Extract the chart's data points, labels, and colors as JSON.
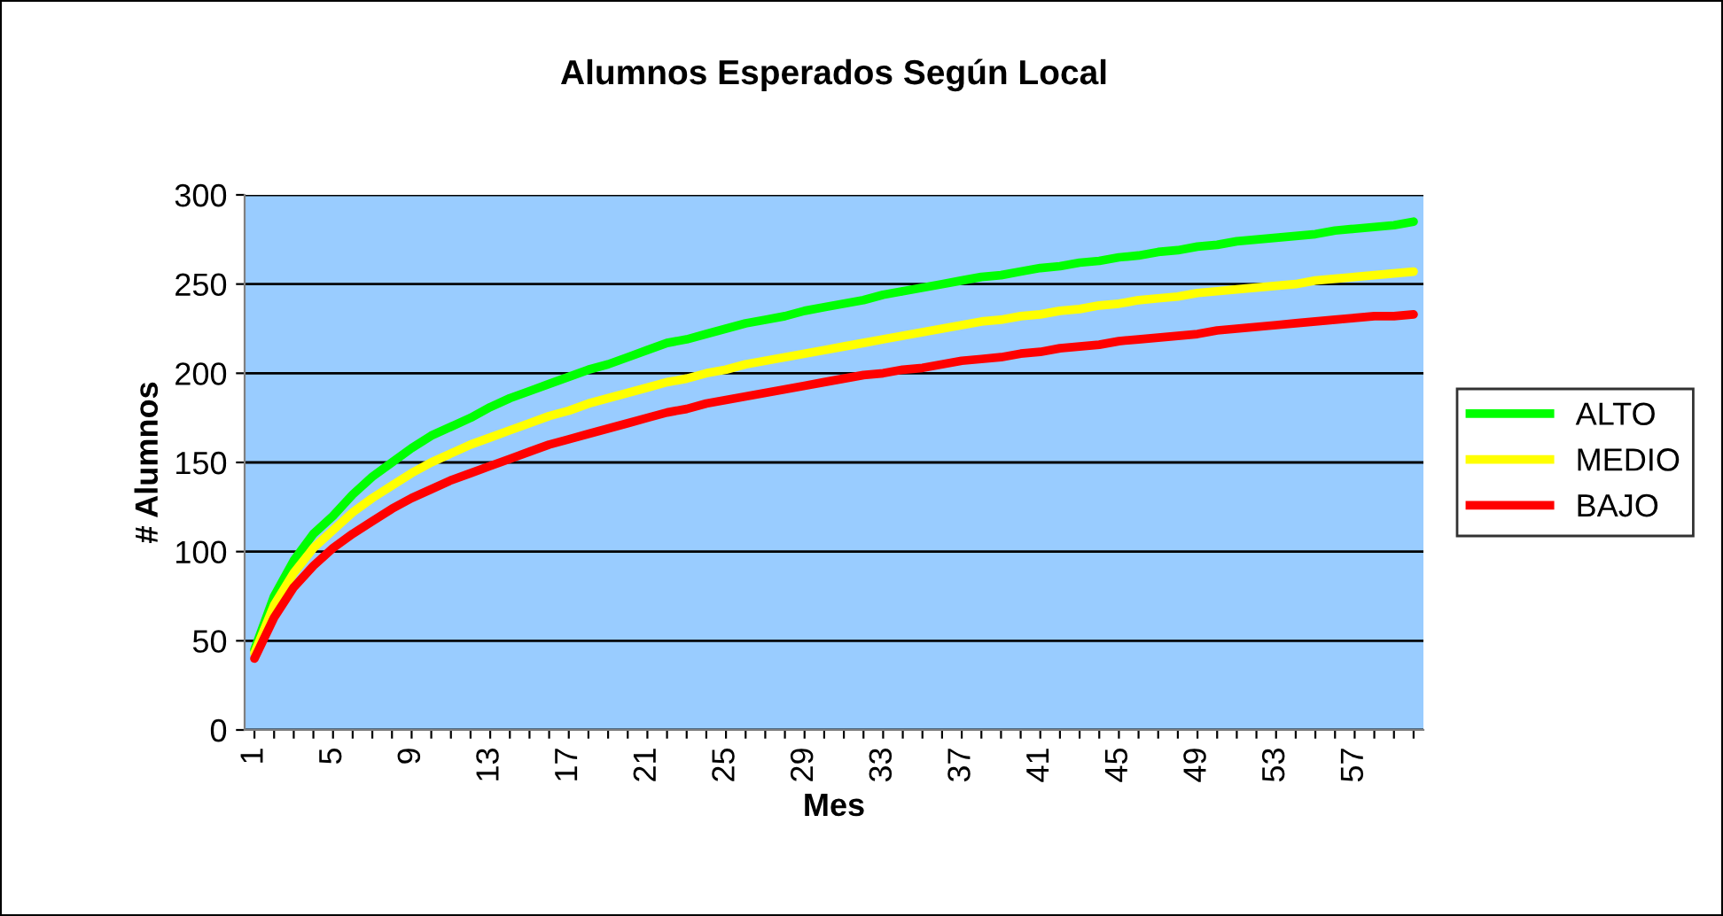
{
  "chart_data": {
    "type": "line",
    "title": "Alumnos Esperados Según Local",
    "xlabel": "Mes",
    "ylabel": "# Alumnos",
    "categories": [
      "1",
      null,
      null,
      null,
      "5",
      null,
      null,
      null,
      "9",
      null,
      null,
      null,
      "13",
      null,
      null,
      null,
      "17",
      null,
      null,
      null,
      "21",
      null,
      null,
      null,
      "25",
      null,
      null,
      null,
      "29",
      null,
      null,
      null,
      "33",
      null,
      null,
      null,
      "37",
      null,
      null,
      null,
      "41",
      null,
      null,
      null,
      "45",
      null,
      null,
      null,
      "49",
      null,
      null,
      null,
      "53",
      null,
      null,
      null,
      "57",
      null,
      null,
      null
    ],
    "series": [
      {
        "name": "ALTO",
        "color": "#00ff00",
        "values": [
          45,
          75,
          95,
          110,
          120,
          132,
          142,
          150,
          158,
          165,
          170,
          175,
          181,
          186,
          190,
          194,
          198,
          202,
          205,
          209,
          213,
          217,
          219,
          222,
          225,
          228,
          230,
          232,
          235,
          237,
          239,
          241,
          244,
          246,
          248,
          250,
          252,
          254,
          255,
          257,
          259,
          260,
          262,
          263,
          265,
          266,
          268,
          269,
          271,
          272,
          274,
          275,
          276,
          277,
          278,
          280,
          281,
          282,
          283,
          285
        ]
      },
      {
        "name": "MEDIO",
        "color": "#ffff00",
        "values": [
          43,
          70,
          88,
          102,
          112,
          122,
          130,
          137,
          144,
          150,
          155,
          160,
          164,
          168,
          172,
          176,
          179,
          183,
          186,
          189,
          192,
          195,
          197,
          200,
          202,
          205,
          207,
          209,
          211,
          213,
          215,
          217,
          219,
          221,
          223,
          225,
          227,
          229,
          230,
          232,
          233,
          235,
          236,
          238,
          239,
          241,
          242,
          243,
          245,
          246,
          247,
          248,
          249,
          250,
          252,
          253,
          254,
          255,
          256,
          257
        ]
      },
      {
        "name": "BAJO",
        "color": "#ff0000",
        "values": [
          40,
          63,
          80,
          92,
          102,
          110,
          117,
          124,
          130,
          135,
          140,
          144,
          148,
          152,
          156,
          160,
          163,
          166,
          169,
          172,
          175,
          178,
          180,
          183,
          185,
          187,
          189,
          191,
          193,
          195,
          197,
          199,
          200,
          202,
          203,
          205,
          207,
          208,
          209,
          211,
          212,
          214,
          215,
          216,
          218,
          219,
          220,
          221,
          222,
          224,
          225,
          226,
          227,
          228,
          229,
          230,
          231,
          232,
          232,
          233
        ]
      }
    ],
    "ylim": [
      0,
      300
    ],
    "yticks": [
      0,
      50,
      100,
      150,
      200,
      250,
      300
    ],
    "grid": "y",
    "legend": "right",
    "marker": "none",
    "line_style": "solid"
  }
}
